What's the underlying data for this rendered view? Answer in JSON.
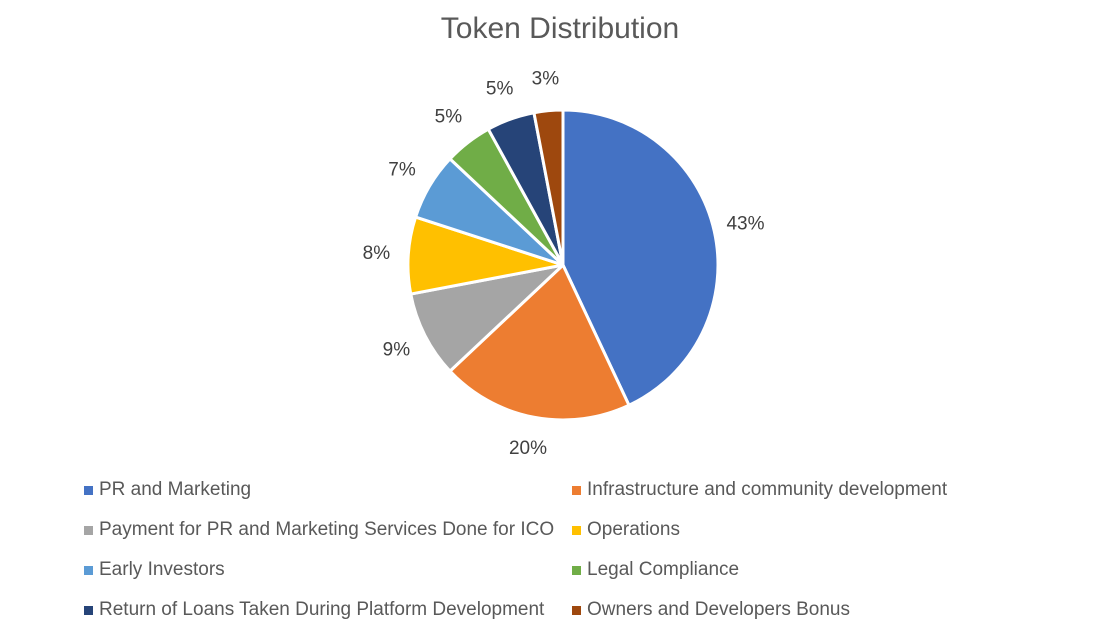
{
  "chart_data": {
    "type": "pie",
    "title": "Token Distribution",
    "slices": [
      {
        "name": "PR and Marketing",
        "value": 43,
        "label": "43%",
        "color": "#4472C4"
      },
      {
        "name": "Infrastructure and community development",
        "value": 20,
        "label": "20%",
        "color": "#ED7D31"
      },
      {
        "name": "Payment for PR and Marketing Services Done for ICO",
        "value": 9,
        "label": "9%",
        "color": "#A5A5A5"
      },
      {
        "name": "Operations",
        "value": 8,
        "label": "8%",
        "color": "#FFC000"
      },
      {
        "name": "Early Investors",
        "value": 7,
        "label": "7%",
        "color": "#5B9BD5"
      },
      {
        "name": "Legal Compliance",
        "value": 5,
        "label": "5%",
        "color": "#70AD47"
      },
      {
        "name": "Return of Loans Taken During Platform Development",
        "value": 5,
        "label": "5%",
        "color": "#264478"
      },
      {
        "name": "Owners and Developers Bonus",
        "value": 3,
        "label": "3%",
        "color": "#9E480E"
      }
    ],
    "legend_position": "bottom",
    "start_angle": "12 o'clock",
    "direction": "clockwise"
  }
}
